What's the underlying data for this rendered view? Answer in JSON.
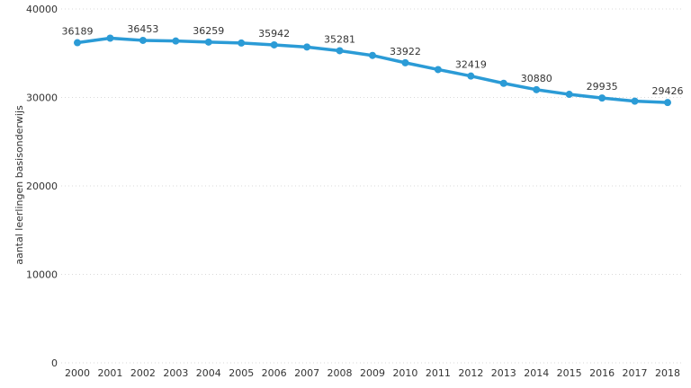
{
  "chart_data": {
    "type": "line",
    "title": "",
    "xlabel": "",
    "ylabel": "aantal leerlingen basisonderwijs",
    "ylim": [
      0,
      40000
    ],
    "yticks": [
      0,
      10000,
      20000,
      30000,
      40000
    ],
    "grid": "horizontal dotted",
    "x": [
      "2000",
      "2001",
      "2002",
      "2003",
      "2004",
      "2005",
      "2006",
      "2007",
      "2008",
      "2009",
      "2010",
      "2011",
      "2012",
      "2013",
      "2014",
      "2015",
      "2016",
      "2017",
      "2018"
    ],
    "series": [
      {
        "name": "",
        "color": "#2b9bd6",
        "values": [
          36189,
          36700,
          36453,
          36380,
          36259,
          36150,
          35942,
          35700,
          35281,
          34750,
          33922,
          33150,
          32419,
          31600,
          30880,
          30350,
          29935,
          29580,
          29426
        ]
      }
    ],
    "data_labels": [
      {
        "index": 0,
        "text": "36189"
      },
      {
        "index": 2,
        "text": "36453"
      },
      {
        "index": 4,
        "text": "36259"
      },
      {
        "index": 6,
        "text": "35942"
      },
      {
        "index": 8,
        "text": "35281"
      },
      {
        "index": 10,
        "text": "33922"
      },
      {
        "index": 12,
        "text": "32419"
      },
      {
        "index": 14,
        "text": "30880"
      },
      {
        "index": 16,
        "text": "29935"
      },
      {
        "index": 18,
        "text": "29426"
      }
    ]
  }
}
